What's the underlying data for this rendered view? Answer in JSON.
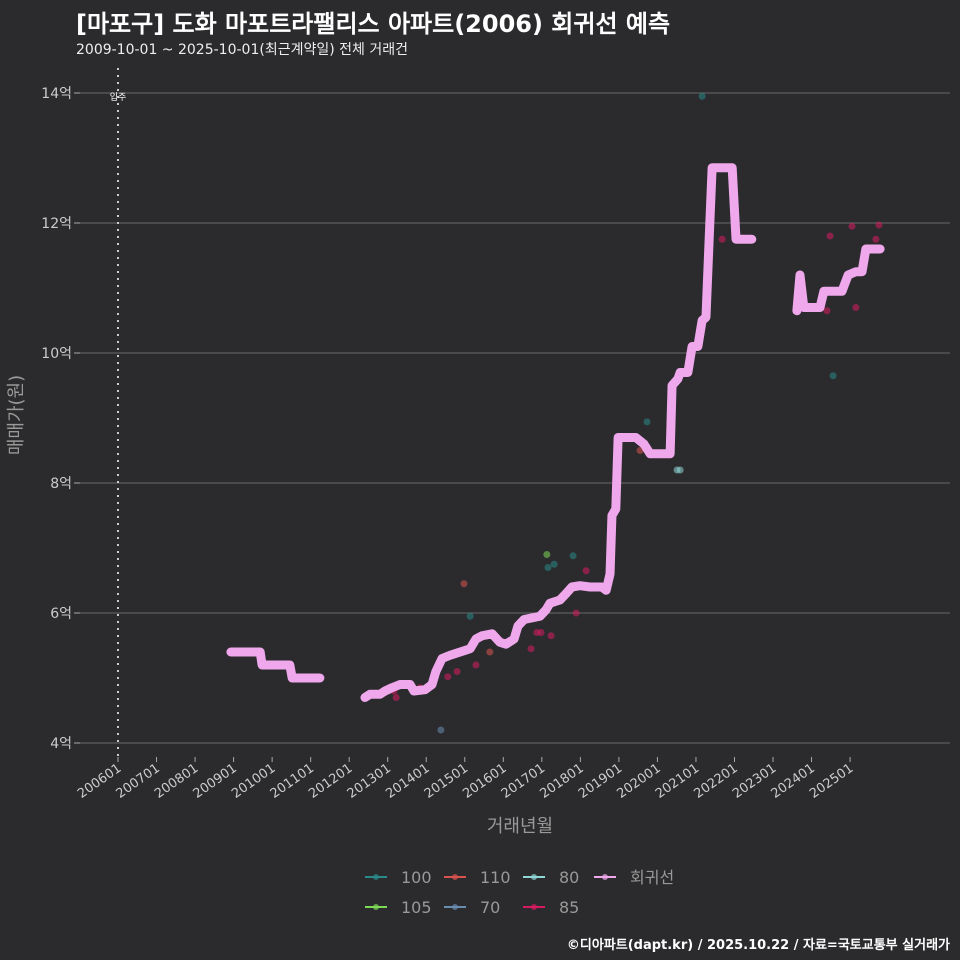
{
  "title": "[마포구] 도화 마포트라팰리스 아파트(2006) 회귀선 예측",
  "subtitle": "2009-10-01 ~ 2025-10-01(최근계약일) 전체 거래건",
  "caption": "©디아파트(dapt.kr) / 2025.10.22 / 자료=국토교통부 실거래가",
  "chart_data": {
    "type": "scatter",
    "xlabel": "거래년월",
    "ylabel": "매매가(원)",
    "xlim": [
      2005.4,
      2028.2
    ],
    "ylim": [
      3.8,
      14.4
    ],
    "yticks": [
      {
        "v": 4,
        "label": "4억"
      },
      {
        "v": 6,
        "label": "6억"
      },
      {
        "v": 8,
        "label": "8억"
      },
      {
        "v": 10,
        "label": "10억"
      },
      {
        "v": 12,
        "label": "12억"
      },
      {
        "v": 14,
        "label": "14억"
      }
    ],
    "xticks": [
      "200601",
      "200701",
      "200801",
      "200901",
      "201001",
      "201101",
      "201201",
      "201301",
      "201401",
      "201501",
      "201601",
      "201701",
      "201801",
      "201901",
      "202001",
      "202101",
      "202201",
      "202301",
      "202401",
      "202501"
    ],
    "annotation": {
      "x": 2006.0,
      "label": "입주"
    },
    "legend_placement": "bottom",
    "series": [
      {
        "name": "100",
        "color": "#2a8a8a",
        "points": [
          [
            2021.16,
            13.95
          ],
          [
            2015.14,
            5.95
          ],
          [
            2019.73,
            8.94
          ],
          [
            2017.16,
            6.7
          ],
          [
            2017.32,
            6.75
          ],
          [
            2017.81,
            6.88
          ],
          [
            2024.56,
            9.65
          ]
        ]
      },
      {
        "name": "105",
        "color": "#7ed957",
        "points": [
          [
            2017.13,
            6.9
          ]
        ]
      },
      {
        "name": "110",
        "color": "#d9534f",
        "points": [
          [
            2014.98,
            6.45
          ],
          [
            2015.65,
            5.4
          ],
          [
            2019.55,
            8.5
          ]
        ]
      },
      {
        "name": "70",
        "color": "#6a8caf",
        "points": [
          [
            2014.38,
            4.2
          ]
        ]
      },
      {
        "name": "80",
        "color": "#8fd6d6",
        "points": [
          [
            2020.51,
            8.2
          ],
          [
            2020.59,
            8.2
          ]
        ]
      },
      {
        "name": "85",
        "color": "#d81b60",
        "points": [
          [
            2015.29,
            5.2
          ],
          [
            2014.56,
            5.02
          ],
          [
            2014.8,
            5.1
          ],
          [
            2015.99,
            5.55
          ],
          [
            2016.72,
            5.45
          ],
          [
            2016.87,
            5.7
          ],
          [
            2016.98,
            5.7
          ],
          [
            2017.24,
            5.65
          ],
          [
            2017.89,
            6.0
          ],
          [
            2018.15,
            6.65
          ],
          [
            2013.16,
            4.8
          ],
          [
            2013.22,
            4.7
          ],
          [
            2013.84,
            4.85
          ],
          [
            2021.68,
            11.75
          ],
          [
            2024.48,
            11.8
          ],
          [
            2024.4,
            10.65
          ],
          [
            2025.05,
            11.95
          ],
          [
            2025.15,
            10.7
          ],
          [
            2025.67,
            11.75
          ],
          [
            2025.75,
            11.97
          ]
        ]
      }
    ],
    "regression": {
      "name": "회귀선",
      "color": "#f0a8ec",
      "segments": [
        [
          [
            2008.93,
            5.4
          ],
          [
            2009.69,
            5.4
          ],
          [
            2009.74,
            5.2
          ],
          [
            2010.46,
            5.2
          ],
          [
            2010.52,
            5.0
          ],
          [
            2011.24,
            5.0
          ]
        ],
        [
          [
            2012.41,
            4.7
          ],
          [
            2012.54,
            4.75
          ],
          [
            2012.8,
            4.75
          ],
          [
            2012.93,
            4.8
          ],
          [
            2013.11,
            4.85
          ],
          [
            2013.32,
            4.9
          ],
          [
            2013.58,
            4.9
          ],
          [
            2013.68,
            4.8
          ],
          [
            2013.97,
            4.82
          ],
          [
            2014.15,
            4.9
          ],
          [
            2014.25,
            5.1
          ],
          [
            2014.41,
            5.3
          ],
          [
            2014.62,
            5.35
          ],
          [
            2014.88,
            5.4
          ],
          [
            2015.14,
            5.45
          ],
          [
            2015.29,
            5.6
          ],
          [
            2015.45,
            5.65
          ],
          [
            2015.71,
            5.68
          ],
          [
            2015.91,
            5.55
          ],
          [
            2016.07,
            5.52
          ],
          [
            2016.28,
            5.6
          ],
          [
            2016.38,
            5.8
          ],
          [
            2016.54,
            5.9
          ],
          [
            2016.95,
            5.95
          ],
          [
            2017.11,
            6.05
          ],
          [
            2017.21,
            6.15
          ],
          [
            2017.47,
            6.2
          ],
          [
            2017.63,
            6.3
          ],
          [
            2017.78,
            6.4
          ],
          [
            2017.99,
            6.42
          ],
          [
            2018.25,
            6.4
          ],
          [
            2018.56,
            6.4
          ],
          [
            2018.67,
            6.35
          ],
          [
            2018.77,
            6.6
          ],
          [
            2018.82,
            7.5
          ],
          [
            2018.92,
            7.6
          ],
          [
            2018.98,
            8.7
          ],
          [
            2019.44,
            8.7
          ],
          [
            2019.65,
            8.6
          ],
          [
            2019.81,
            8.45
          ],
          [
            2020.33,
            8.45
          ],
          [
            2020.38,
            9.5
          ],
          [
            2020.53,
            9.6
          ],
          [
            2020.59,
            9.7
          ],
          [
            2020.79,
            9.7
          ],
          [
            2020.9,
            10.1
          ],
          [
            2021.05,
            10.1
          ],
          [
            2021.16,
            10.5
          ],
          [
            2021.26,
            10.55
          ],
          [
            2021.36,
            12.0
          ],
          [
            2021.42,
            12.85
          ],
          [
            2021.94,
            12.85
          ],
          [
            2022.04,
            11.75
          ],
          [
            2022.45,
            11.75
          ]
        ],
        [
          [
            2023.62,
            10.65
          ],
          [
            2023.7,
            11.2
          ],
          [
            2023.8,
            10.7
          ],
          [
            2024.22,
            10.7
          ],
          [
            2024.32,
            10.95
          ],
          [
            2024.79,
            10.95
          ],
          [
            2024.95,
            11.2
          ],
          [
            2025.15,
            11.25
          ],
          [
            2025.31,
            11.25
          ],
          [
            2025.41,
            11.6
          ],
          [
            2025.78,
            11.6
          ]
        ]
      ]
    }
  }
}
